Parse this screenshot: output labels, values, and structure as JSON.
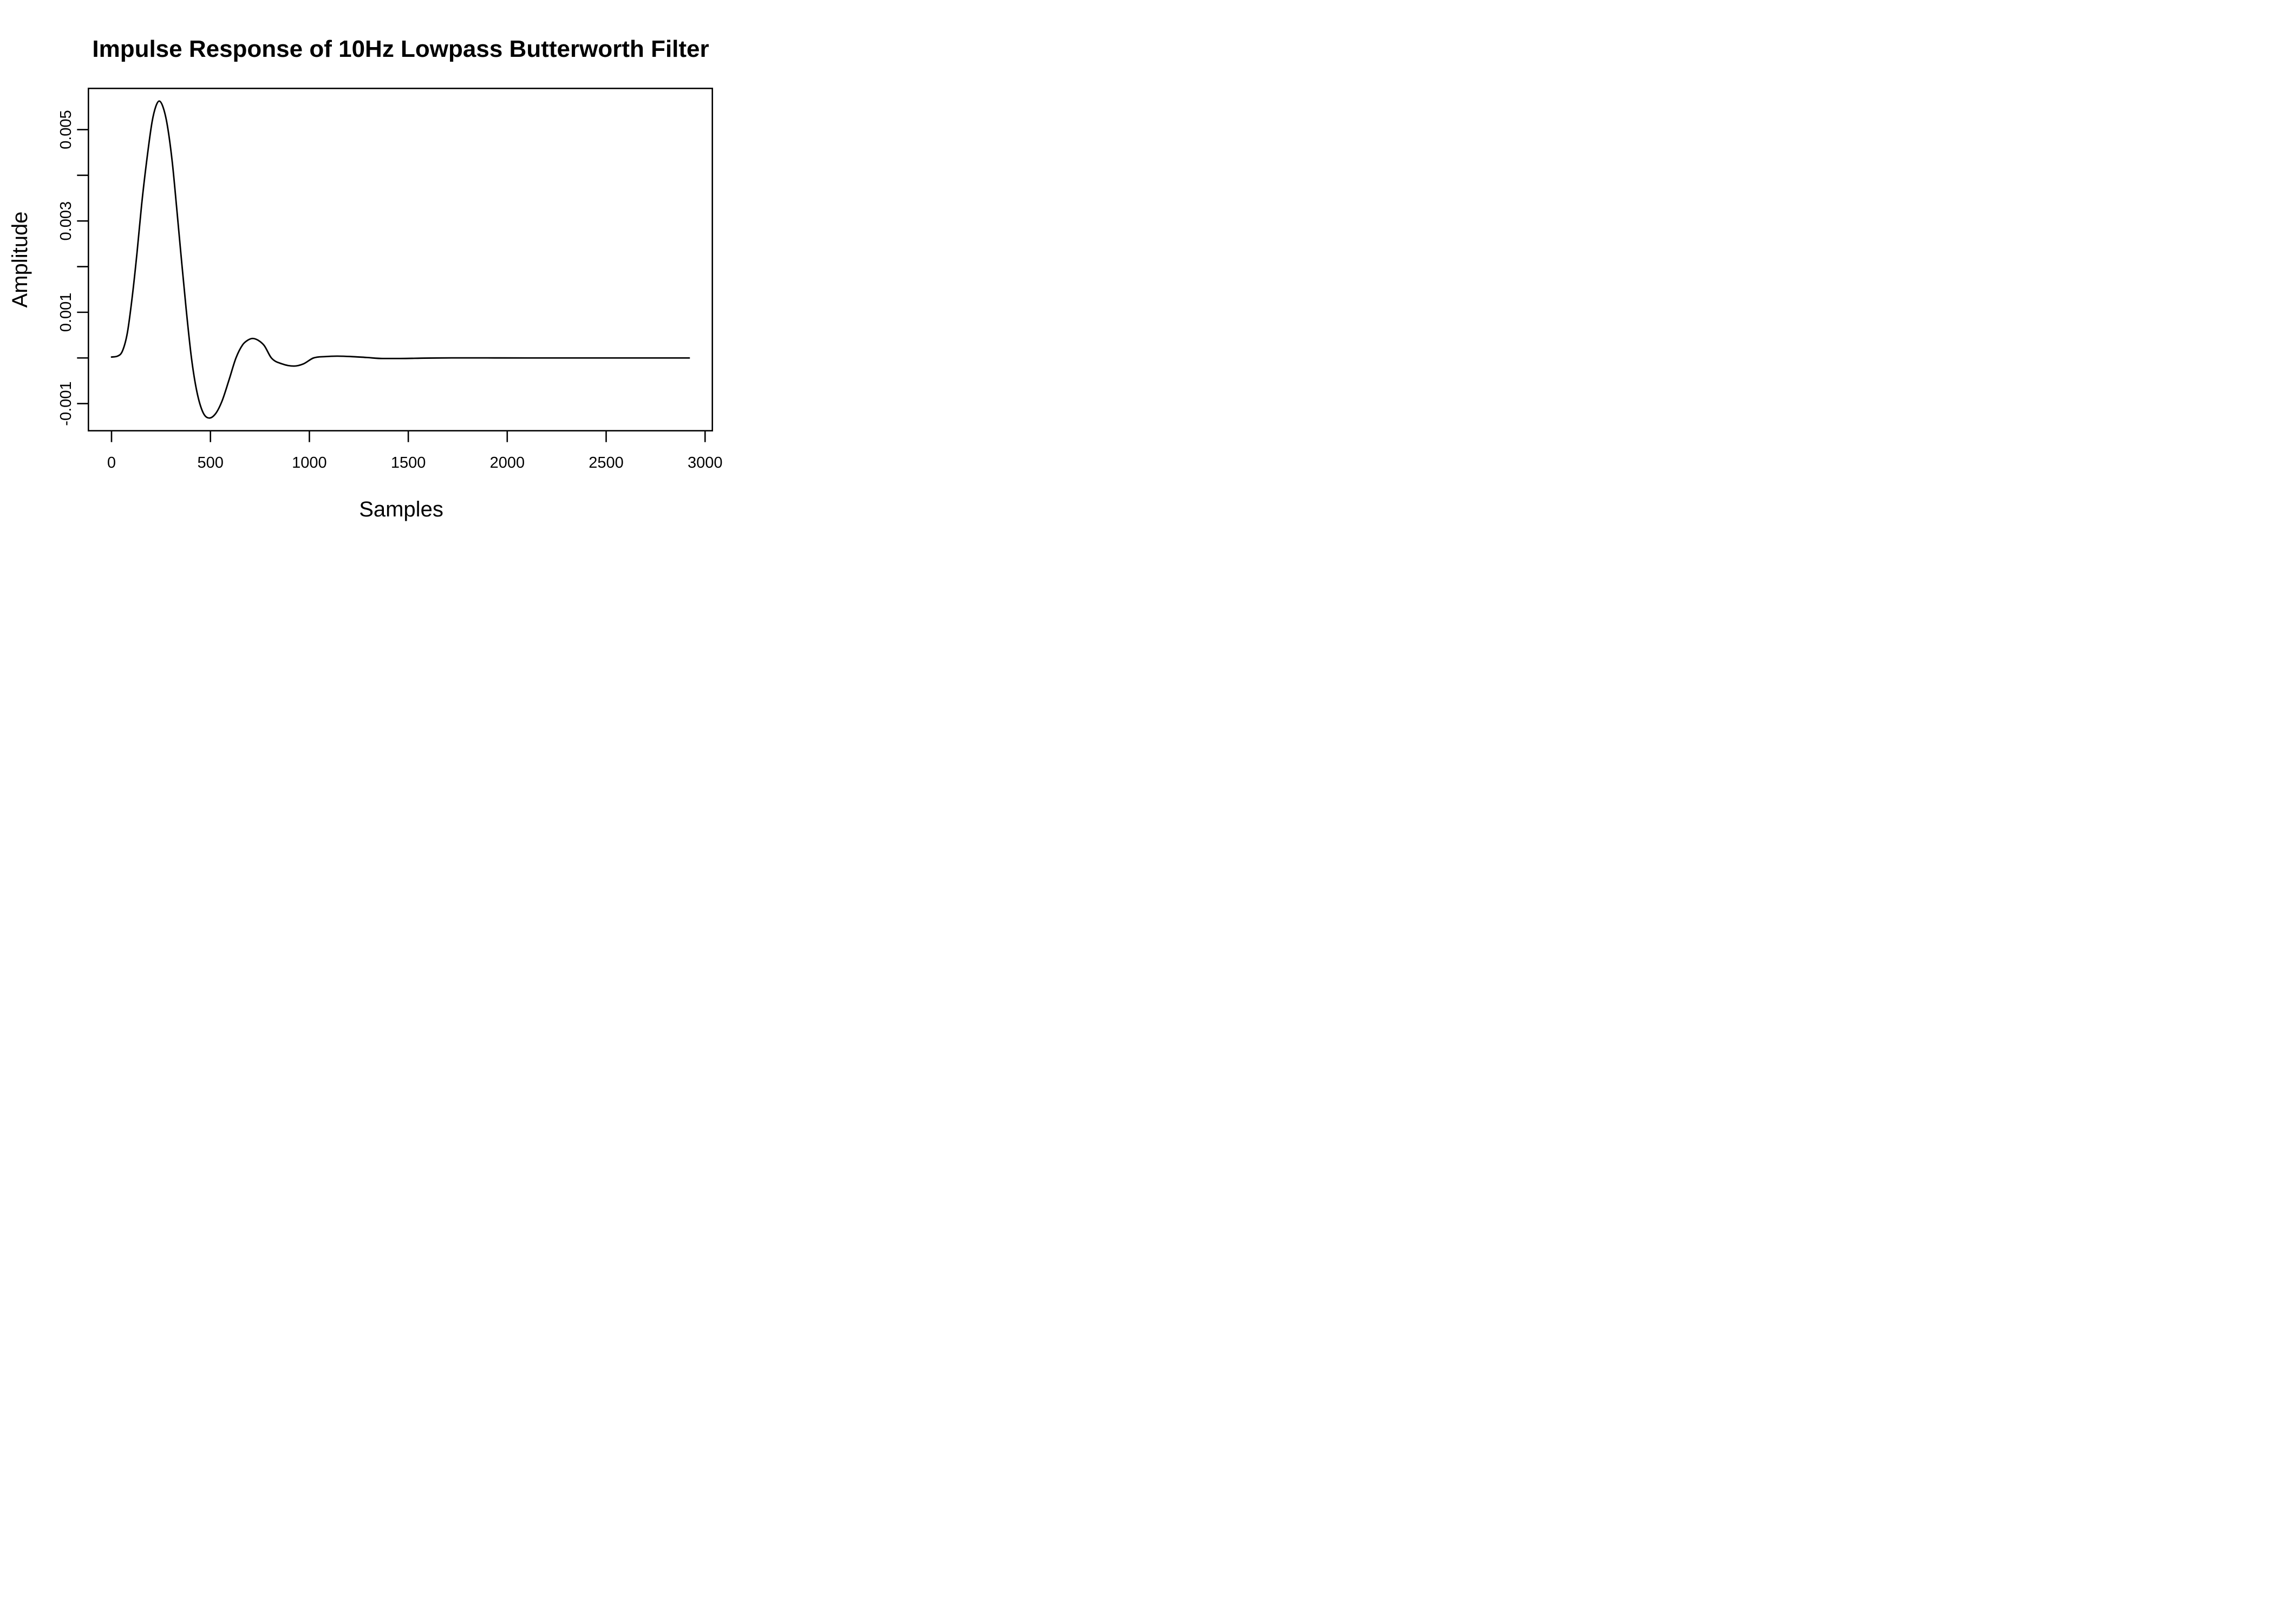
{
  "figure": {
    "background": "#ffffff",
    "foreground": "#000000"
  },
  "chart_data": {
    "type": "line",
    "title": "Impulse Response of 10Hz Lowpass Butterworth Filter",
    "xlabel": "Samples",
    "ylabel": "Amplitude",
    "grid": false,
    "legend": null,
    "xlim": [
      -116.8,
      3036.8
    ],
    "ylim": [
      -0.001594,
      0.005903
    ],
    "x_ticks": [
      {
        "value": 0,
        "label": "0"
      },
      {
        "value": 500,
        "label": "500"
      },
      {
        "value": 1000,
        "label": "1000"
      },
      {
        "value": 1500,
        "label": "1500"
      },
      {
        "value": 2000,
        "label": "2000"
      },
      {
        "value": 2500,
        "label": "2500"
      },
      {
        "value": 3000,
        "label": "3000"
      }
    ],
    "y_ticks": [
      {
        "value": -0.001,
        "label": "-0.001"
      },
      {
        "value": 0,
        "label": ""
      },
      {
        "value": 0.001,
        "label": "0.001"
      },
      {
        "value": 0.002,
        "label": ""
      },
      {
        "value": 0.003,
        "label": "0.003"
      },
      {
        "value": 0.004,
        "label": ""
      },
      {
        "value": 0.005,
        "label": "0.005"
      }
    ],
    "series": [
      {
        "name": "impulse-response",
        "color": "#000000",
        "points": [
          [
            0,
            2e-05
          ],
          [
            30,
            4e-05
          ],
          [
            55,
            0.00015
          ],
          [
            80,
            0.00055
          ],
          [
            105,
            0.00135
          ],
          [
            129,
            0.00231
          ],
          [
            152,
            0.00335
          ],
          [
            177,
            0.00429
          ],
          [
            205,
            0.00517
          ],
          [
            224,
            0.00551
          ],
          [
            241,
            0.005625
          ],
          [
            259,
            0.00551
          ],
          [
            281,
            0.00512
          ],
          [
            307,
            0.00429
          ],
          [
            329,
            0.0033
          ],
          [
            350,
            0.00231
          ],
          [
            377,
            0.00108
          ],
          [
            404,
            0
          ],
          [
            431,
            -0.00073
          ],
          [
            462,
            -0.00119
          ],
          [
            494,
            -0.001316
          ],
          [
            526,
            -0.00122
          ],
          [
            558,
            -0.00095
          ],
          [
            594,
            -0.00048
          ],
          [
            629,
            0
          ],
          [
            663,
            0.00029
          ],
          [
            689,
            0.00039
          ],
          [
            713,
            0.000427
          ],
          [
            740,
            0.00039
          ],
          [
            772,
            0.00027
          ],
          [
            808,
            0
          ],
          [
            862,
            -0.00013
          ],
          [
            922,
            -0.000178
          ],
          [
            970,
            -0.00013
          ],
          [
            1021,
            0
          ],
          [
            1080,
            3e-05
          ],
          [
            1141,
            4e-05
          ],
          [
            1205,
            3.2e-05
          ],
          [
            1290,
            1e-05
          ],
          [
            1370,
            -1.2e-05
          ],
          [
            1460,
            -1.2e-05
          ],
          [
            1580,
            -4e-06
          ],
          [
            1720,
            1e-06
          ],
          [
            1900,
            1e-06
          ],
          [
            2100,
            0
          ],
          [
            2400,
            0
          ],
          [
            2700,
            0
          ],
          [
            2920,
            0
          ]
        ]
      }
    ]
  }
}
